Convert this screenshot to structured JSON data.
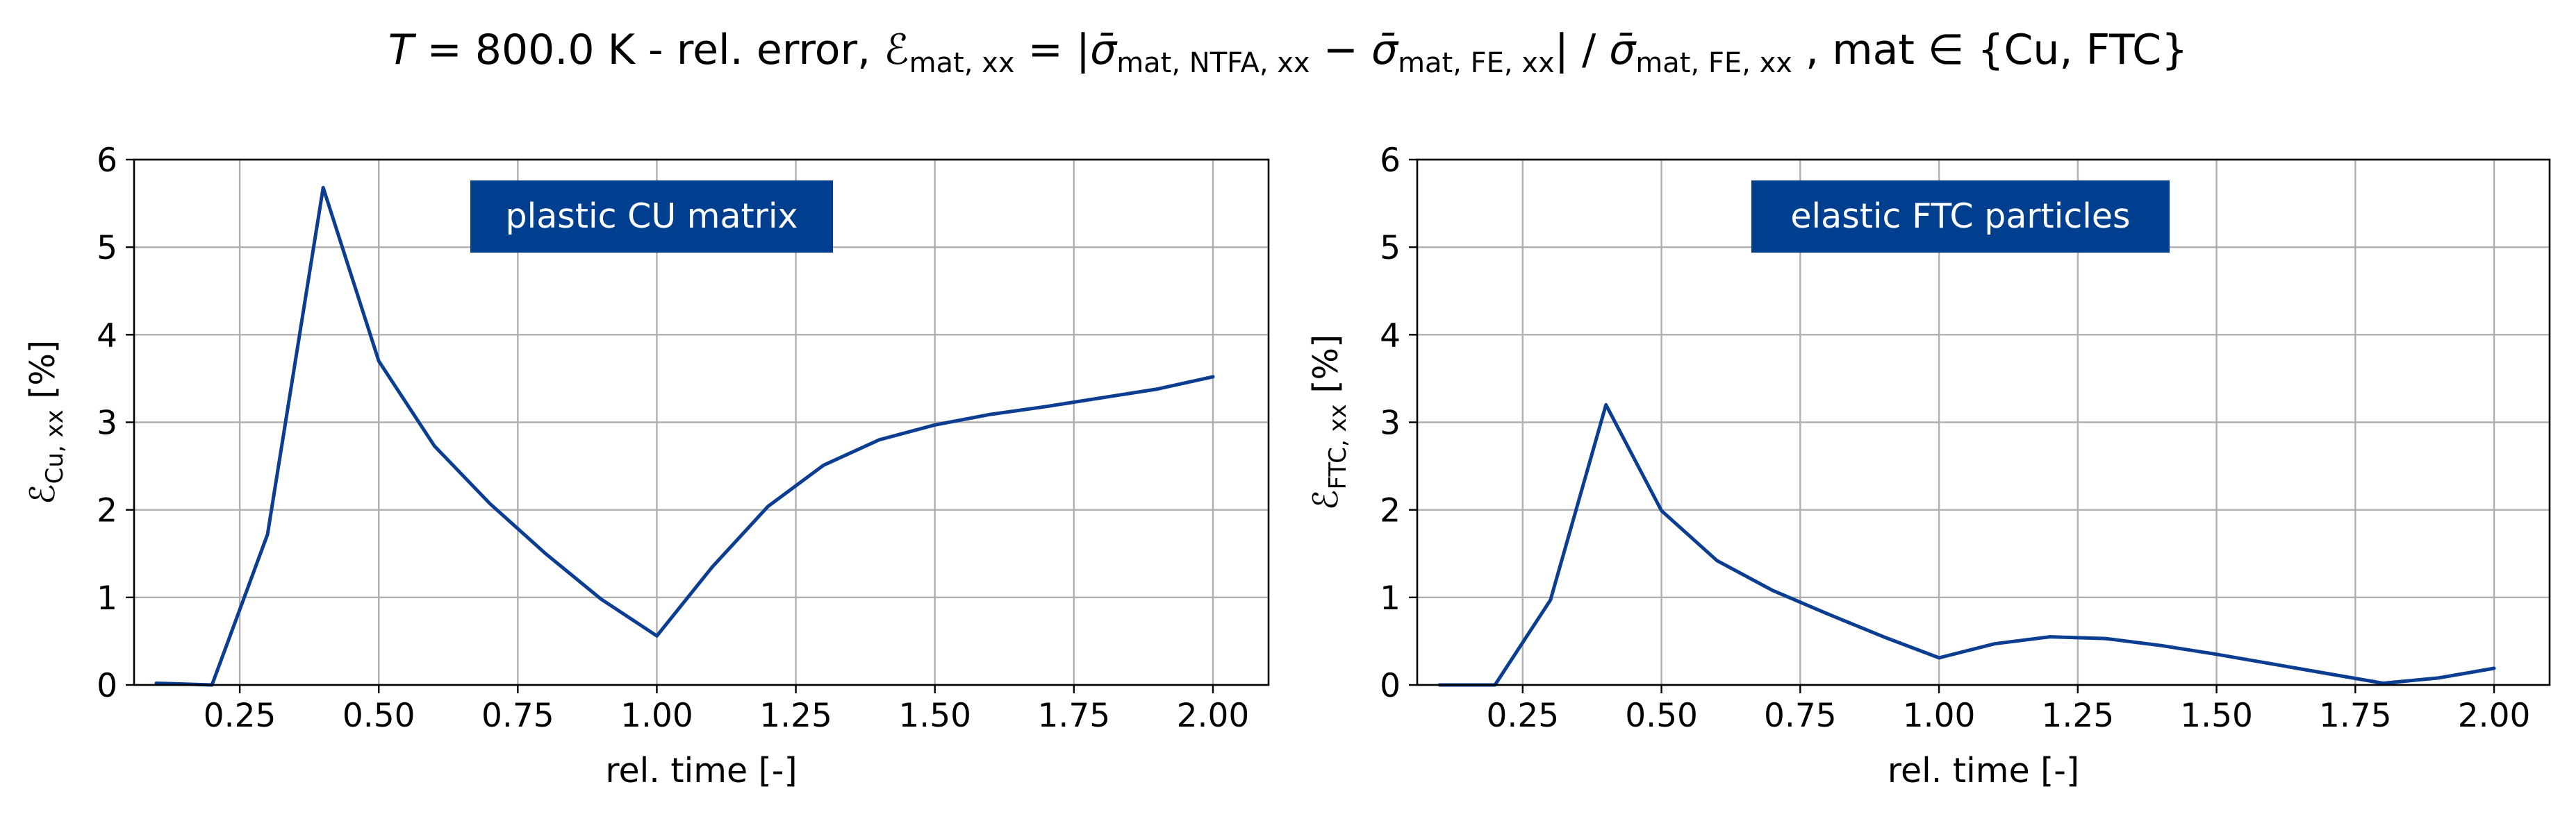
{
  "figure": {
    "title_parts": [
      "T",
      " = 800.0 K - rel. error,  ",
      "ℰ",
      "mat, xx",
      " = |",
      "σ̄",
      "mat, NTFA, xx",
      " − ",
      "σ̄",
      "mat, FE, xx",
      "| / ",
      "σ̄",
      "mat, FE, xx",
      " ,  mat ∈ {Cu, FTC}"
    ]
  },
  "colors": {
    "line": "#0b3d91",
    "annotation_bg": "#003f8f",
    "annotation_text": "#ffffff",
    "grid": "#b0b0b0"
  },
  "chart_data": [
    {
      "type": "line",
      "annotation": "plastic CU matrix",
      "xlabel": "rel. time [-]",
      "ylabel_main": "ℰ",
      "ylabel_sub": "Cu, xx",
      "ylabel_unit": " [%]",
      "xlim": [
        0.06,
        2.1
      ],
      "ylim": [
        0,
        6
      ],
      "xticks": [
        0.25,
        0.5,
        0.75,
        1.0,
        1.25,
        1.5,
        1.75,
        2.0
      ],
      "xtick_labels": [
        "0.25",
        "0.50",
        "0.75",
        "1.00",
        "1.25",
        "1.50",
        "1.75",
        "2.00"
      ],
      "yticks": [
        0,
        1,
        2,
        3,
        4,
        5,
        6
      ],
      "ytick_labels": [
        "0",
        "1",
        "2",
        "3",
        "4",
        "5",
        "6"
      ],
      "grid": true,
      "series": [
        {
          "x": [
            0.1,
            0.2,
            0.3,
            0.4,
            0.5,
            0.6,
            0.7,
            0.8,
            0.9,
            1.0,
            1.1,
            1.2,
            1.3,
            1.4,
            1.5,
            1.6,
            1.7,
            1.8,
            1.9,
            2.0
          ],
          "y": [
            0.02,
            0.0,
            1.72,
            5.68,
            3.7,
            2.73,
            2.07,
            1.5,
            0.98,
            0.56,
            1.35,
            2.04,
            2.51,
            2.8,
            2.97,
            3.09,
            3.18,
            3.28,
            3.38,
            3.52
          ]
        }
      ]
    },
    {
      "type": "line",
      "annotation": "elastic FTC particles",
      "xlabel": "rel. time [-]",
      "ylabel_main": "ℰ",
      "ylabel_sub": "FTC, xx",
      "ylabel_unit": " [%]",
      "xlim": [
        0.06,
        2.1
      ],
      "ylim": [
        0,
        6
      ],
      "xticks": [
        0.25,
        0.5,
        0.75,
        1.0,
        1.25,
        1.5,
        1.75,
        2.0
      ],
      "xtick_labels": [
        "0.25",
        "0.50",
        "0.75",
        "1.00",
        "1.25",
        "1.50",
        "1.75",
        "2.00"
      ],
      "yticks": [
        0,
        1,
        2,
        3,
        4,
        5,
        6
      ],
      "ytick_labels": [
        "0",
        "1",
        "2",
        "3",
        "4",
        "5",
        "6"
      ],
      "grid": true,
      "series": [
        {
          "x": [
            0.1,
            0.2,
            0.3,
            0.4,
            0.5,
            0.6,
            0.7,
            0.8,
            0.9,
            1.0,
            1.1,
            1.2,
            1.3,
            1.4,
            1.5,
            1.6,
            1.7,
            1.8,
            1.9,
            2.0
          ],
          "y": [
            0.0,
            0.0,
            0.97,
            3.2,
            1.99,
            1.42,
            1.08,
            0.81,
            0.55,
            0.31,
            0.47,
            0.55,
            0.53,
            0.45,
            0.35,
            0.24,
            0.13,
            0.02,
            0.08,
            0.19
          ]
        }
      ]
    }
  ]
}
